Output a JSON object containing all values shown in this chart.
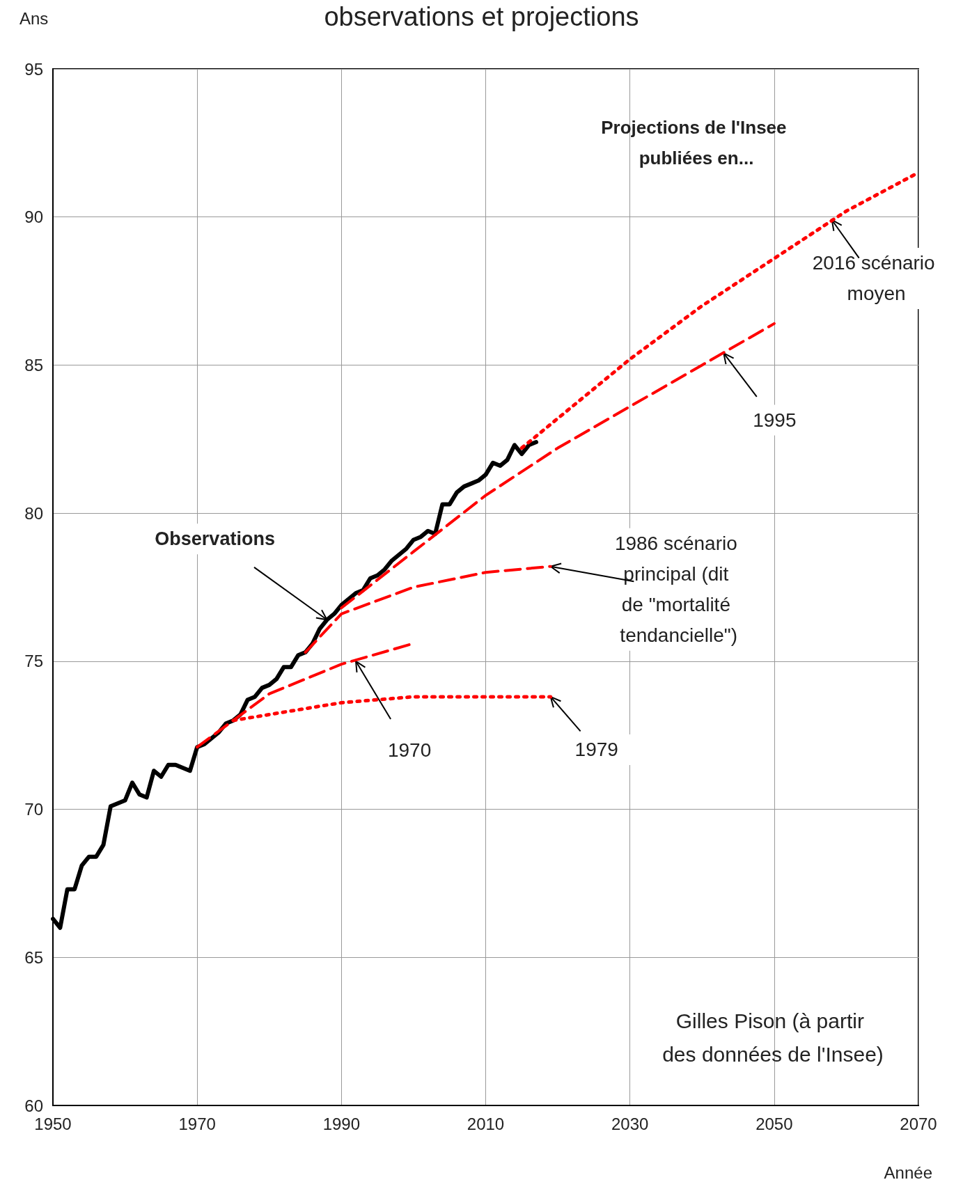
{
  "chart_data": {
    "type": "line",
    "title": "observations et projections",
    "xlabel": "Année",
    "ylabel": "Ans",
    "xlim": [
      1950,
      2070
    ],
    "xticks": [
      1950,
      1970,
      1990,
      2010,
      2030,
      2050,
      2070
    ],
    "ylim": [
      60,
      95
    ],
    "yticks": [
      60,
      65,
      70,
      75,
      80,
      85,
      90,
      95
    ],
    "grid": true,
    "marker": "none",
    "series": [
      {
        "color": "#000000",
        "line_style": "solid",
        "x": [
          1950,
          1951,
          1952,
          1953,
          1954,
          1955,
          1956,
          1957,
          1958,
          1959,
          1960,
          1961,
          1962,
          1963,
          1964,
          1965,
          1966,
          1967,
          1968,
          1969,
          1970,
          1971,
          1972,
          1973,
          1974,
          1975,
          1976,
          1977,
          1978,
          1979,
          1980,
          1981,
          1982,
          1983,
          1984,
          1985,
          1986,
          1987,
          1988,
          1989,
          1990,
          1991,
          1992,
          1993,
          1994,
          1995,
          1996,
          1997,
          1998,
          1999,
          2000,
          2001,
          2002,
          2003,
          2004,
          2005,
          2006,
          2007,
          2008,
          2009,
          2010,
          2011,
          2012,
          2013,
          2014,
          2015,
          2016,
          2017
        ],
        "values": [
          66.3,
          66.0,
          67.3,
          67.3,
          68.1,
          68.4,
          68.4,
          68.8,
          70.1,
          70.2,
          70.3,
          70.9,
          70.5,
          70.4,
          71.3,
          71.1,
          71.5,
          71.5,
          71.4,
          71.3,
          72.1,
          72.2,
          72.4,
          72.6,
          72.9,
          73.0,
          73.2,
          73.7,
          73.8,
          74.1,
          74.2,
          74.4,
          74.8,
          74.8,
          75.2,
          75.3,
          75.6,
          76.1,
          76.4,
          76.6,
          76.9,
          77.1,
          77.3,
          77.4,
          77.8,
          77.9,
          78.1,
          78.4,
          78.6,
          78.8,
          79.1,
          79.2,
          79.4,
          79.3,
          80.3,
          80.3,
          80.7,
          80.9,
          81.0,
          81.1,
          81.3,
          81.7,
          81.6,
          81.8,
          82.3,
          82.0,
          82.3,
          82.4
        ]
      },
      {
        "color": "#ff0000",
        "line_style": "dashed",
        "x": [
          1970,
          1975,
          1980,
          1990,
          2000
        ],
        "values": [
          72.1,
          73.0,
          73.9,
          74.9,
          75.6
        ]
      },
      {
        "color": "#ff0000",
        "line_style": "dotted",
        "x": [
          1975,
          1980,
          1990,
          2000,
          2019
        ],
        "values": [
          73.0,
          73.2,
          73.6,
          73.8,
          73.8
        ]
      },
      {
        "color": "#ff0000",
        "line_style": "dashed",
        "x": [
          1985,
          1990,
          2000,
          2010,
          2019
        ],
        "values": [
          75.3,
          76.6,
          77.5,
          78.0,
          78.2
        ]
      },
      {
        "color": "#ff0000",
        "line_style": "dashed",
        "x": [
          1990,
          2000,
          2010,
          2020,
          2030,
          2040,
          2050
        ],
        "values": [
          76.8,
          78.7,
          80.6,
          82.2,
          83.6,
          85.0,
          86.4
        ]
      },
      {
        "color": "#ff0000",
        "line_style": "dotted",
        "x": [
          2015,
          2020,
          2030,
          2040,
          2050,
          2060,
          2070
        ],
        "values": [
          82.2,
          83.2,
          85.2,
          87.0,
          88.6,
          90.2,
          91.5
        ]
      }
    ],
    "annotations": [
      {
        "text": "Observations",
        "x": 1988,
        "y": 76.4
      },
      {
        "text": "1970",
        "x": 1992,
        "y": 75.0
      },
      {
        "text": "1979",
        "x": 2019,
        "y": 73.8
      },
      {
        "text": "1986 scénario principal (dit de \"mortalité tendancielle\")",
        "x": 2019,
        "y": 78.2
      },
      {
        "text": "1995",
        "x": 2043,
        "y": 85.4
      },
      {
        "text": "2016 scénario moyen",
        "x": 2058,
        "y": 89.9
      },
      "Projections de l'Insee publiées en...",
      "Gilles Pison (à partir des données de l'Insee)"
    ]
  }
}
